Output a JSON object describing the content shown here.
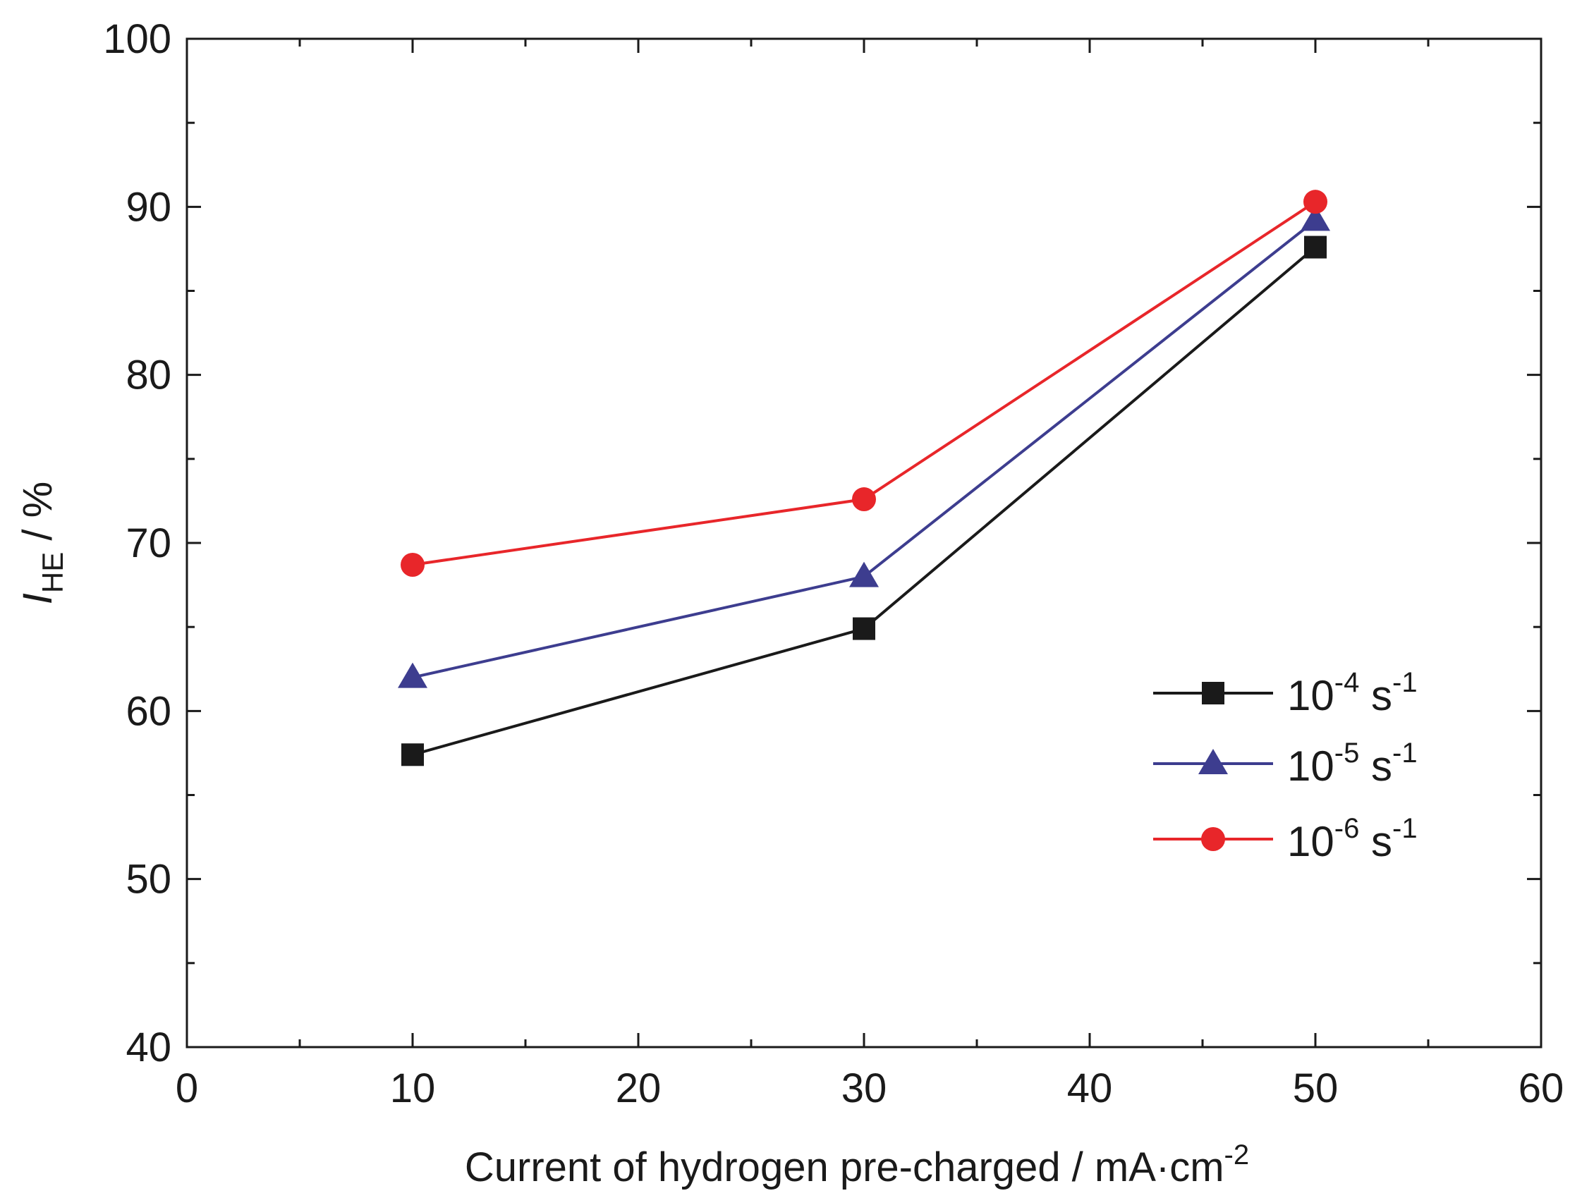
{
  "chart_data": {
    "type": "line",
    "title": "",
    "xlabel": "Current of hydrogen pre-charged / mA·cm",
    "xlabel_superscript": "-2",
    "ylabel_main": "I",
    "ylabel_sub": "HE",
    "ylabel_suffix": " / %",
    "xlim": [
      0,
      60
    ],
    "ylim": [
      40,
      100
    ],
    "x_major_ticks": [
      0,
      10,
      20,
      30,
      40,
      50,
      60
    ],
    "x_minor_ticks": [
      5,
      15,
      25,
      35,
      45,
      55
    ],
    "y_major_ticks": [
      40,
      50,
      60,
      70,
      80,
      90,
      100
    ],
    "y_minor_ticks": [
      45,
      55,
      65,
      75,
      85,
      95
    ],
    "grid": false,
    "legend_position": "right",
    "x": [
      10,
      30,
      50
    ],
    "series": [
      {
        "name_base": "10",
        "name_exp": "-4",
        "name_unit": " s",
        "name_unit_exp": "-1",
        "marker": "square",
        "color": "#1a1a1a",
        "values": [
          57.4,
          64.9,
          87.6
        ]
      },
      {
        "name_base": "10",
        "name_exp": "-5",
        "name_unit": " s",
        "name_unit_exp": "-1",
        "marker": "triangle",
        "color": "#3d3d8f",
        "values": [
          62.0,
          68.0,
          89.2
        ]
      },
      {
        "name_base": "10",
        "name_exp": "-6",
        "name_unit": " s",
        "name_unit_exp": "-1",
        "marker": "circle",
        "color": "#e8262a",
        "values": [
          68.7,
          72.6,
          90.3
        ]
      }
    ]
  }
}
